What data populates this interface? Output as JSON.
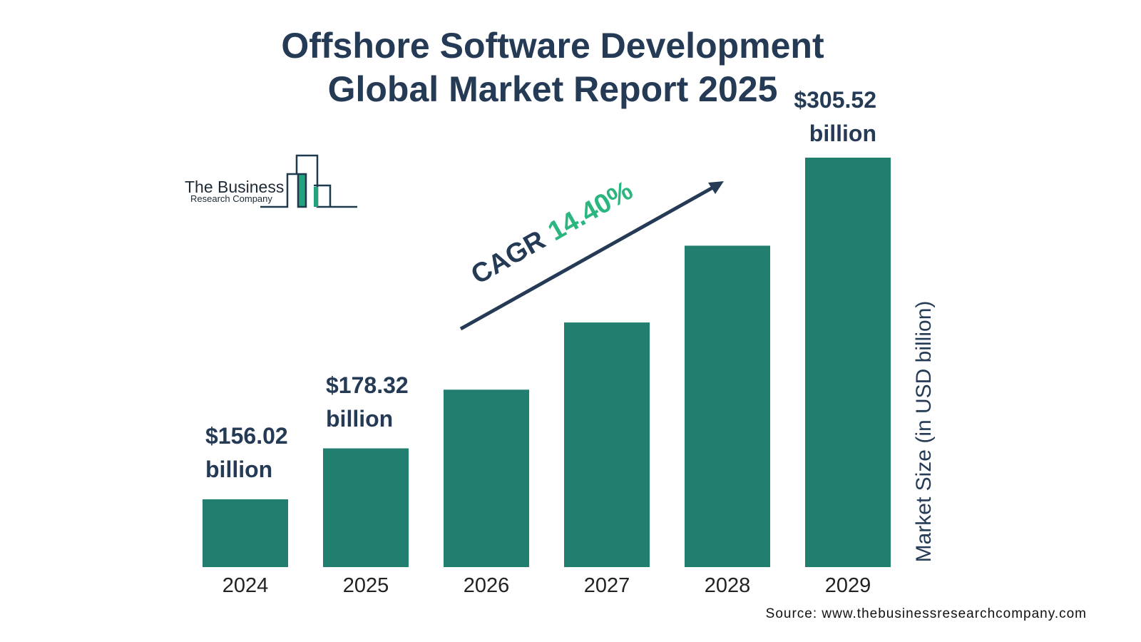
{
  "chart_data": {
    "type": "bar",
    "title": "Offshore Software Development Global Market Report 2025",
    "categories": [
      "2024",
      "2025",
      "2026",
      "2027",
      "2028",
      "2029"
    ],
    "values": [
      156.02,
      178.32,
      204.0,
      233.4,
      267.0,
      305.52
    ],
    "value_labels": [
      "$156.02 billion",
      "$178.32 billion",
      null,
      null,
      null,
      "$305.52 billion"
    ],
    "color": "#227e6e",
    "y_label": "Market Size (in USD billion)",
    "annotation": {
      "text": "CAGR",
      "value": "14.40%"
    },
    "logo": [
      "The Business",
      "Research Company"
    ],
    "source": "Source: www.thebusinessresearchcompany.com"
  }
}
